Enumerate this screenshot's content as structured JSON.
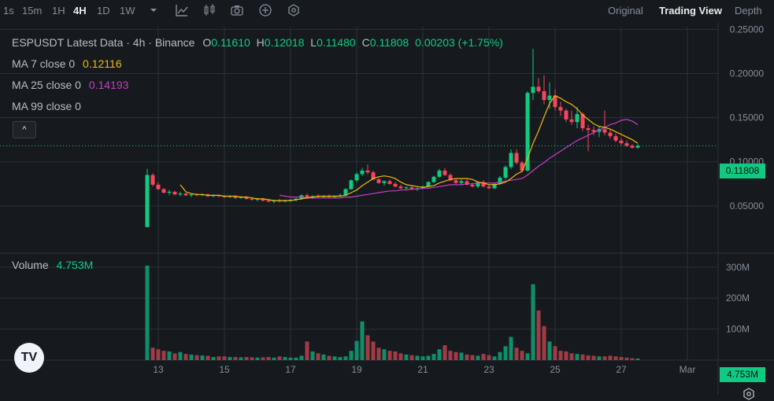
{
  "toolbar": {
    "intervals": [
      "1s",
      "15m",
      "1H",
      "4H",
      "1D",
      "1W"
    ],
    "active_interval": "4H",
    "icons": [
      "chevron-down-icon",
      "line-chart-icon",
      "candlestick-icon",
      "camera-icon",
      "plus-circle-icon",
      "settings-hex-icon"
    ]
  },
  "view_tabs": {
    "original": "Original",
    "trading_view": "Trading View",
    "depth": "Depth"
  },
  "legend": {
    "symbol_line": "ESPUSDT Latest Data · 4h · Binance",
    "o_label": "O",
    "o_value": "0.11610",
    "h_label": "H",
    "h_value": "0.12018",
    "l_label": "L",
    "l_value": "0.11480",
    "c_label": "C",
    "c_value": "0.11808",
    "change": "0.00203 (+1.75%)",
    "ma7_label": "MA 7 close 0",
    "ma7_value": "0.12116",
    "ma25_label": "MA 25 close 0",
    "ma25_value": "0.14193",
    "ma99_label": "MA 99 close 0",
    "volume_label": "Volume",
    "volume_value": "4.753M",
    "collapse": "^"
  },
  "price_tag": "0.11808",
  "volume_tag": "4.753M",
  "logo_text": "TV",
  "colors": {
    "up": "#0ecb81",
    "down": "#f6465d",
    "up_dim": "#0e8f6a",
    "down_dim": "#a13c47",
    "ma7": "#f0b90b",
    "ma25": "#c33ec6",
    "grid": "#2b3139"
  },
  "chart_data": {
    "type": "candlestick",
    "price_axis": {
      "ticks": [
        0.25,
        0.2,
        0.15,
        0.1,
        0.05
      ],
      "tick_labels": [
        "0.25000",
        "0.20000",
        "0.15000",
        "0.10000",
        "0.05000"
      ],
      "ylim": [
        0.0,
        0.253
      ]
    },
    "volume_axis": {
      "ticks": [
        300,
        200,
        100
      ],
      "tick_labels": [
        "300M",
        "200M",
        "100M"
      ],
      "ylim": [
        0,
        330
      ]
    },
    "x_axis": {
      "tick_labels": [
        "13",
        "15",
        "17",
        "19",
        "21",
        "23",
        "25",
        "27",
        "Mar"
      ],
      "tick_index": [
        2,
        14,
        26,
        38,
        50,
        62,
        74,
        86,
        98
      ]
    },
    "candles": [
      [
        0.026,
        0.092,
        0.026,
        0.085
      ],
      [
        0.085,
        0.087,
        0.072,
        0.074
      ],
      [
        0.074,
        0.077,
        0.068,
        0.069
      ],
      [
        0.069,
        0.07,
        0.064,
        0.065
      ],
      [
        0.065,
        0.068,
        0.062,
        0.066
      ],
      [
        0.066,
        0.067,
        0.062,
        0.063
      ],
      [
        0.063,
        0.066,
        0.061,
        0.064
      ],
      [
        0.064,
        0.065,
        0.061,
        0.062
      ],
      [
        0.062,
        0.064,
        0.06,
        0.063
      ],
      [
        0.063,
        0.064,
        0.061,
        0.062
      ],
      [
        0.062,
        0.064,
        0.061,
        0.063
      ],
      [
        0.063,
        0.064,
        0.06,
        0.061
      ],
      [
        0.061,
        0.063,
        0.06,
        0.062
      ],
      [
        0.062,
        0.063,
        0.06,
        0.061
      ],
      [
        0.061,
        0.062,
        0.059,
        0.06
      ],
      [
        0.06,
        0.062,
        0.059,
        0.061
      ],
      [
        0.061,
        0.062,
        0.058,
        0.059
      ],
      [
        0.059,
        0.061,
        0.058,
        0.06
      ],
      [
        0.06,
        0.061,
        0.057,
        0.058
      ],
      [
        0.058,
        0.06,
        0.056,
        0.057
      ],
      [
        0.057,
        0.059,
        0.055,
        0.058
      ],
      [
        0.058,
        0.059,
        0.055,
        0.056
      ],
      [
        0.056,
        0.058,
        0.054,
        0.055
      ],
      [
        0.055,
        0.057,
        0.053,
        0.056
      ],
      [
        0.056,
        0.058,
        0.054,
        0.055
      ],
      [
        0.055,
        0.057,
        0.054,
        0.056
      ],
      [
        0.056,
        0.058,
        0.055,
        0.057
      ],
      [
        0.057,
        0.059,
        0.055,
        0.058
      ],
      [
        0.058,
        0.063,
        0.057,
        0.062
      ],
      [
        0.062,
        0.064,
        0.058,
        0.059
      ],
      [
        0.059,
        0.062,
        0.058,
        0.061
      ],
      [
        0.061,
        0.063,
        0.059,
        0.06
      ],
      [
        0.06,
        0.062,
        0.059,
        0.061
      ],
      [
        0.061,
        0.063,
        0.059,
        0.06
      ],
      [
        0.06,
        0.062,
        0.059,
        0.061
      ],
      [
        0.061,
        0.064,
        0.06,
        0.062
      ],
      [
        0.062,
        0.07,
        0.061,
        0.069
      ],
      [
        0.069,
        0.08,
        0.068,
        0.079
      ],
      [
        0.079,
        0.088,
        0.077,
        0.086
      ],
      [
        0.086,
        0.093,
        0.084,
        0.09
      ],
      [
        0.09,
        0.097,
        0.086,
        0.088
      ],
      [
        0.088,
        0.09,
        0.079,
        0.08
      ],
      [
        0.08,
        0.082,
        0.075,
        0.076
      ],
      [
        0.076,
        0.079,
        0.073,
        0.078
      ],
      [
        0.078,
        0.08,
        0.074,
        0.075
      ],
      [
        0.075,
        0.077,
        0.071,
        0.072
      ],
      [
        0.072,
        0.074,
        0.069,
        0.07
      ],
      [
        0.07,
        0.072,
        0.068,
        0.071
      ],
      [
        0.071,
        0.073,
        0.068,
        0.069
      ],
      [
        0.069,
        0.071,
        0.067,
        0.07
      ],
      [
        0.07,
        0.073,
        0.069,
        0.072
      ],
      [
        0.072,
        0.078,
        0.071,
        0.077
      ],
      [
        0.077,
        0.084,
        0.076,
        0.083
      ],
      [
        0.083,
        0.092,
        0.082,
        0.09
      ],
      [
        0.09,
        0.093,
        0.084,
        0.085
      ],
      [
        0.085,
        0.087,
        0.078,
        0.079
      ],
      [
        0.079,
        0.081,
        0.075,
        0.076
      ],
      [
        0.076,
        0.08,
        0.074,
        0.078
      ],
      [
        0.078,
        0.08,
        0.073,
        0.074
      ],
      [
        0.074,
        0.076,
        0.071,
        0.072
      ],
      [
        0.072,
        0.078,
        0.07,
        0.077
      ],
      [
        0.077,
        0.079,
        0.071,
        0.072
      ],
      [
        0.072,
        0.074,
        0.069,
        0.07
      ],
      [
        0.07,
        0.076,
        0.069,
        0.075
      ],
      [
        0.075,
        0.084,
        0.074,
        0.082
      ],
      [
        0.082,
        0.096,
        0.08,
        0.094
      ],
      [
        0.094,
        0.114,
        0.092,
        0.11
      ],
      [
        0.11,
        0.114,
        0.097,
        0.099
      ],
      [
        0.099,
        0.101,
        0.088,
        0.09
      ],
      [
        0.09,
        0.18,
        0.089,
        0.178
      ],
      [
        0.178,
        0.228,
        0.17,
        0.185
      ],
      [
        0.185,
        0.195,
        0.178,
        0.18
      ],
      [
        0.18,
        0.198,
        0.165,
        0.17
      ],
      [
        0.17,
        0.19,
        0.16,
        0.175
      ],
      [
        0.175,
        0.182,
        0.158,
        0.162
      ],
      [
        0.162,
        0.168,
        0.152,
        0.158
      ],
      [
        0.158,
        0.16,
        0.145,
        0.148
      ],
      [
        0.148,
        0.158,
        0.142,
        0.145
      ],
      [
        0.145,
        0.162,
        0.138,
        0.154
      ],
      [
        0.154,
        0.156,
        0.135,
        0.138
      ],
      [
        0.138,
        0.142,
        0.112,
        0.136
      ],
      [
        0.136,
        0.14,
        0.13,
        0.134
      ],
      [
        0.134,
        0.14,
        0.128,
        0.137
      ],
      [
        0.137,
        0.158,
        0.13,
        0.133
      ],
      [
        0.133,
        0.136,
        0.126,
        0.129
      ],
      [
        0.129,
        0.132,
        0.122,
        0.124
      ],
      [
        0.124,
        0.127,
        0.119,
        0.121
      ],
      [
        0.121,
        0.124,
        0.117,
        0.118
      ],
      [
        0.118,
        0.12,
        0.115,
        0.116
      ],
      [
        0.1161,
        0.12018,
        0.1148,
        0.11808
      ]
    ],
    "ma7": [
      null,
      null,
      null,
      null,
      null,
      null,
      0.074,
      0.066,
      0.064,
      0.063,
      0.063,
      0.062,
      0.062,
      0.062,
      0.061,
      0.061,
      0.061,
      0.06,
      0.06,
      0.059,
      0.058,
      0.058,
      0.057,
      0.056,
      0.056,
      0.056,
      0.056,
      0.057,
      0.058,
      0.059,
      0.06,
      0.061,
      0.061,
      0.061,
      0.061,
      0.061,
      0.062,
      0.065,
      0.068,
      0.073,
      0.077,
      0.081,
      0.083,
      0.084,
      0.083,
      0.081,
      0.077,
      0.074,
      0.073,
      0.072,
      0.071,
      0.072,
      0.073,
      0.076,
      0.078,
      0.08,
      0.081,
      0.081,
      0.081,
      0.08,
      0.077,
      0.076,
      0.074,
      0.074,
      0.075,
      0.077,
      0.081,
      0.086,
      0.089,
      0.104,
      0.121,
      0.135,
      0.151,
      0.166,
      0.175,
      0.172,
      0.168,
      0.165,
      0.16,
      0.153,
      0.148,
      0.143,
      0.14,
      0.139,
      0.137,
      0.134,
      0.131,
      0.128,
      0.125,
      0.121
    ],
    "ma25": [
      null,
      null,
      null,
      null,
      null,
      null,
      null,
      null,
      null,
      null,
      null,
      null,
      null,
      null,
      null,
      null,
      null,
      null,
      null,
      null,
      null,
      null,
      null,
      null,
      0.062,
      0.061,
      0.06,
      0.06,
      0.06,
      0.059,
      0.059,
      0.059,
      0.059,
      0.059,
      0.059,
      0.059,
      0.06,
      0.06,
      0.061,
      0.062,
      0.063,
      0.064,
      0.065,
      0.066,
      0.067,
      0.067,
      0.068,
      0.068,
      0.069,
      0.069,
      0.07,
      0.07,
      0.071,
      0.072,
      0.073,
      0.074,
      0.074,
      0.074,
      0.075,
      0.075,
      0.076,
      0.076,
      0.076,
      0.076,
      0.077,
      0.078,
      0.079,
      0.08,
      0.081,
      0.085,
      0.09,
      0.095,
      0.099,
      0.104,
      0.108,
      0.112,
      0.116,
      0.12,
      0.124,
      0.127,
      0.13,
      0.133,
      0.136,
      0.139,
      0.142,
      0.144,
      0.147,
      0.148,
      0.146,
      0.142
    ],
    "volume": [
      305,
      40,
      35,
      30,
      28,
      22,
      26,
      20,
      18,
      16,
      15,
      14,
      10,
      12,
      12,
      10,
      10,
      9,
      10,
      9,
      8,
      9,
      10,
      8,
      12,
      10,
      8,
      8,
      14,
      60,
      28,
      22,
      18,
      14,
      12,
      10,
      12,
      30,
      62,
      125,
      80,
      60,
      40,
      35,
      30,
      28,
      22,
      18,
      16,
      14,
      12,
      14,
      20,
      35,
      48,
      30,
      26,
      24,
      18,
      16,
      14,
      20,
      16,
      12,
      26,
      45,
      75,
      40,
      30,
      22,
      245,
      160,
      110,
      60,
      45,
      30,
      28,
      22,
      20,
      18,
      15,
      14,
      12,
      12,
      14,
      12,
      10,
      8,
      6,
      5
    ]
  }
}
